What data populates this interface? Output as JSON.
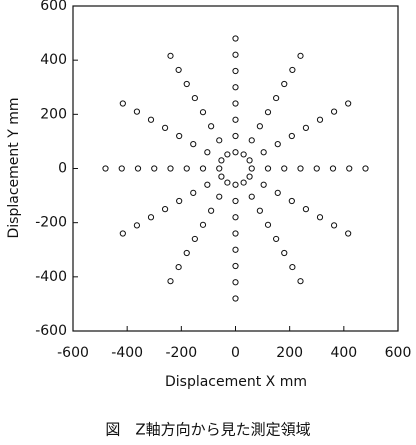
{
  "chart_data": {
    "type": "scatter",
    "caption": "図　Z軸方向から見た測定領域",
    "xlabel": "Displacement  X  mm",
    "ylabel": "Displacement  Y  mm",
    "xlim": [
      -600,
      600
    ],
    "ylim": [
      -600,
      600
    ],
    "xticks": [
      -600,
      -400,
      -200,
      0,
      200,
      400,
      600
    ],
    "yticks": [
      -600,
      -400,
      -200,
      0,
      200,
      400,
      600
    ],
    "marker_color": "#111111",
    "x": [
      60,
      120,
      180,
      240,
      300,
      360,
      420,
      480,
      52,
      104,
      156,
      208,
      260,
      312,
      364,
      416,
      30,
      60,
      90,
      120,
      150,
      180,
      210,
      240,
      0,
      0,
      0,
      0,
      0,
      0,
      0,
      0,
      -30,
      -60,
      -90,
      -120,
      -150,
      -180,
      -210,
      -240,
      -52,
      -104,
      -156,
      -208,
      -260,
      -312,
      -364,
      -416,
      -60,
      -120,
      -180,
      -240,
      -300,
      -360,
      -420,
      -480,
      -52,
      -104,
      -156,
      -208,
      -260,
      -312,
      -364,
      -416,
      -30,
      -60,
      -90,
      -120,
      -150,
      -180,
      -210,
      -240,
      0,
      0,
      0,
      0,
      0,
      0,
      0,
      0,
      30,
      60,
      90,
      120,
      150,
      180,
      210,
      240,
      52,
      104,
      156,
      208,
      260,
      312,
      364,
      416
    ],
    "y": [
      0,
      0,
      0,
      0,
      0,
      0,
      0,
      0,
      30,
      60,
      90,
      120,
      150,
      180,
      210,
      240,
      52,
      104,
      156,
      208,
      260,
      312,
      364,
      416,
      60,
      120,
      180,
      240,
      300,
      360,
      420,
      480,
      52,
      104,
      156,
      208,
      260,
      312,
      364,
      416,
      30,
      60,
      90,
      120,
      150,
      180,
      210,
      240,
      0,
      0,
      0,
      0,
      0,
      0,
      0,
      0,
      -30,
      -60,
      -90,
      -120,
      -150,
      -180,
      -210,
      -240,
      -52,
      -104,
      -156,
      -208,
      -260,
      -312,
      -364,
      -416,
      -60,
      -120,
      -180,
      -240,
      -300,
      -360,
      -420,
      -480,
      -52,
      -104,
      -156,
      -208,
      -260,
      -312,
      -364,
      -416,
      -30,
      -60,
      -90,
      -120,
      -150,
      -180,
      -210,
      -240
    ]
  }
}
